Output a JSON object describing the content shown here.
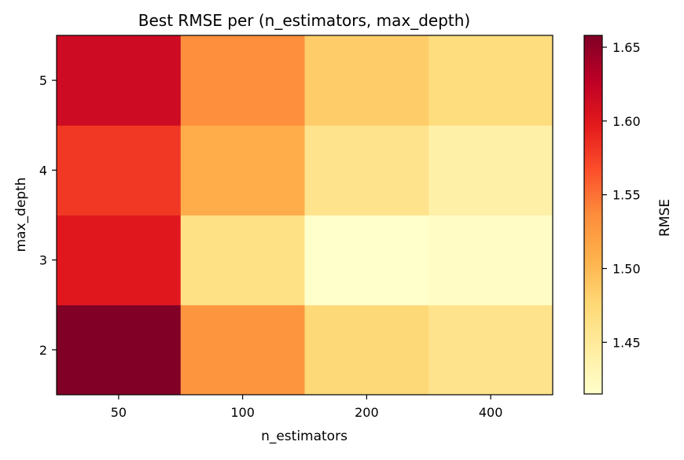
{
  "chart_data": {
    "type": "heatmap",
    "title": "Best RMSE per (n_estimators, max_depth)",
    "xlabel": "n_estimators",
    "ylabel": "max_depth",
    "x_categories": [
      "50",
      "100",
      "200",
      "400"
    ],
    "y_categories": [
      "2",
      "3",
      "4",
      "5"
    ],
    "values": [
      [
        1.658,
        1.53,
        1.475,
        1.46
      ],
      [
        1.6,
        1.465,
        1.415,
        1.42
      ],
      [
        1.58,
        1.51,
        1.46,
        1.44
      ],
      [
        1.615,
        1.535,
        1.485,
        1.47
      ]
    ],
    "colormap": "YlOrRd",
    "colormap_stops": [
      "#ffffcc",
      "#ffeda0",
      "#fed976",
      "#feb24c",
      "#fd8d3c",
      "#fc4e2a",
      "#e31a1c",
      "#bd0026",
      "#800026"
    ],
    "vmin": 1.415,
    "vmax": 1.658,
    "colorbar": {
      "label": "RMSE",
      "ticks": [
        1.45,
        1.5,
        1.55,
        1.6,
        1.65
      ],
      "tick_labels": [
        "1.45",
        "1.50",
        "1.55",
        "1.60",
        "1.65"
      ]
    },
    "grid": false
  }
}
